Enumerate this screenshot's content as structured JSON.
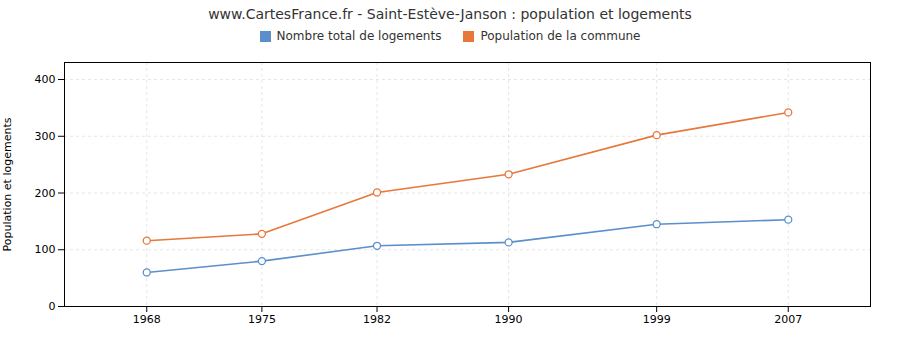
{
  "chart_data": {
    "type": "line",
    "title": "www.CartesFrance.fr - Saint-Estève-Janson : population et logements",
    "ylabel": "Population et logements",
    "x": [
      1968,
      1975,
      1982,
      1990,
      1999,
      2007
    ],
    "series": [
      {
        "name": "Nombre total de logements",
        "color": "#5b8fcc",
        "values": [
          60,
          80,
          107,
          113,
          145,
          153
        ]
      },
      {
        "name": "Population de la commune",
        "color": "#e8773a",
        "values": [
          116,
          128,
          201,
          233,
          302,
          342
        ]
      }
    ],
    "xlim": [
      1963,
      2012
    ],
    "xticks": [
      1968,
      1975,
      1982,
      1990,
      1999,
      2007
    ],
    "ylim": [
      0,
      430
    ],
    "yticks": [
      0,
      100,
      200,
      300,
      400
    ],
    "grid": true,
    "legend": "top",
    "marker": "circle"
  }
}
